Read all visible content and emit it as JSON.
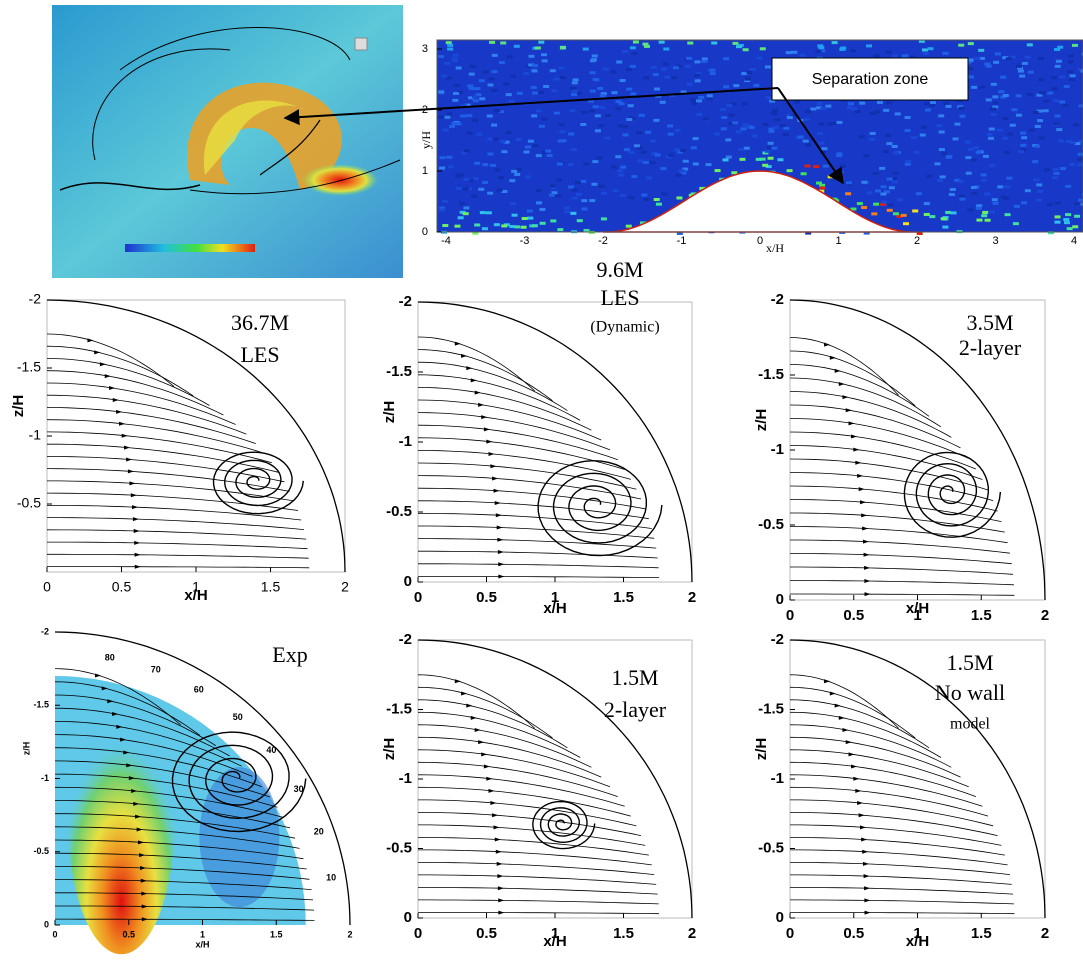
{
  "separation_plot": {
    "annotation": "Separation zone",
    "ylabel": "y/H",
    "xlabel": "x/H",
    "yticks": [
      "0",
      "1",
      "2",
      "3"
    ],
    "xticks": [
      "-4",
      "-3",
      "-2",
      "-1",
      "0",
      "1",
      "2",
      "3",
      "4"
    ]
  },
  "panels": [
    {
      "labels": [
        "36.7M",
        "LES"
      ],
      "xlabel": "x/H",
      "ylabel": "z/H",
      "xticks": [
        "0",
        "0.5",
        "1",
        "1.5",
        "2"
      ],
      "yticks": [
        "-2",
        "-1.5",
        "-1",
        "-0.5"
      ]
    },
    {
      "labels": [
        "9.6M",
        "LES",
        "(Dynamic)"
      ],
      "xlabel": "x/H",
      "ylabel": "z/H",
      "xticks": [
        "0",
        "0.5",
        "1",
        "1.5",
        "2"
      ],
      "yticks": [
        "-2",
        "-1.5",
        "-1",
        "-0.5",
        "0"
      ]
    },
    {
      "labels": [
        "3.5M",
        "2-layer"
      ],
      "xlabel": "x/H",
      "ylabel": "z/H",
      "xticks": [
        "0",
        "0.5",
        "1",
        "1.5",
        "2"
      ],
      "yticks": [
        "-2",
        "-1.5",
        "-1",
        "-0.5",
        "0"
      ]
    },
    {
      "labels": [
        "Exp"
      ],
      "xlabel": "x/H",
      "ylabel": "z/H",
      "xticks": [
        "0",
        "0.5",
        "1",
        "1.5",
        "2"
      ],
      "yticks": [
        "-2",
        "-1.5",
        "-1",
        "-0.5",
        "0"
      ],
      "contour_labels": [
        "80",
        "70",
        "60",
        "50",
        "40",
        "30",
        "20",
        "10"
      ]
    },
    {
      "labels": [
        "1.5M",
        "2-layer"
      ],
      "xlabel": "x/H",
      "ylabel": "z/H",
      "xticks": [
        "0",
        "0.5",
        "1",
        "1.5",
        "2"
      ],
      "yticks": [
        "-2",
        "-1.5",
        "-1",
        "-0.5",
        "0"
      ]
    },
    {
      "labels": [
        "1.5M",
        "No wall",
        "model"
      ],
      "xlabel": "x/H",
      "ylabel": "z/H",
      "xticks": [
        "0",
        "0.5",
        "1",
        "1.5",
        "2"
      ],
      "yticks": [
        "-2",
        "-1.5",
        "-1",
        "-0.5",
        "0"
      ]
    }
  ]
}
